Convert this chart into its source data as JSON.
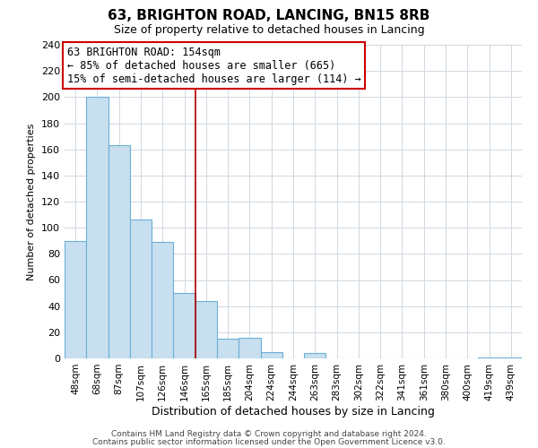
{
  "title": "63, BRIGHTON ROAD, LANCING, BN15 8RB",
  "subtitle": "Size of property relative to detached houses in Lancing",
  "xlabel": "Distribution of detached houses by size in Lancing",
  "ylabel": "Number of detached properties",
  "bar_labels": [
    "48sqm",
    "68sqm",
    "87sqm",
    "107sqm",
    "126sqm",
    "146sqm",
    "165sqm",
    "185sqm",
    "204sqm",
    "224sqm",
    "244sqm",
    "263sqm",
    "283sqm",
    "302sqm",
    "322sqm",
    "341sqm",
    "361sqm",
    "380sqm",
    "400sqm",
    "419sqm",
    "439sqm"
  ],
  "bar_values": [
    90,
    200,
    163,
    106,
    89,
    50,
    44,
    15,
    16,
    5,
    0,
    4,
    0,
    0,
    0,
    0,
    0,
    0,
    0,
    1,
    1
  ],
  "bar_color": "#c8dff0",
  "bar_edge_color": "#6aafd6",
  "ylim": [
    0,
    240
  ],
  "yticks": [
    0,
    20,
    40,
    60,
    80,
    100,
    120,
    140,
    160,
    180,
    200,
    220,
    240
  ],
  "vline_x_idx": 5.5,
  "vline_color": "#aa0000",
  "annotation_title": "63 BRIGHTON ROAD: 154sqm",
  "annotation_line1": "← 85% of detached houses are smaller (665)",
  "annotation_line2": "15% of semi-detached houses are larger (114) →",
  "annotation_box_color": "#ffffff",
  "annotation_box_edge": "#cc0000",
  "footer1": "Contains HM Land Registry data © Crown copyright and database right 2024.",
  "footer2": "Contains public sector information licensed under the Open Government Licence v3.0.",
  "background_color": "#ffffff",
  "grid_color": "#d0d8e0",
  "title_fontsize": 11,
  "subtitle_fontsize": 9,
  "xlabel_fontsize": 9,
  "ylabel_fontsize": 8,
  "tick_fontsize": 8,
  "xtick_fontsize": 7.5,
  "footer_fontsize": 6.5,
  "ann_fontsize": 8.5
}
